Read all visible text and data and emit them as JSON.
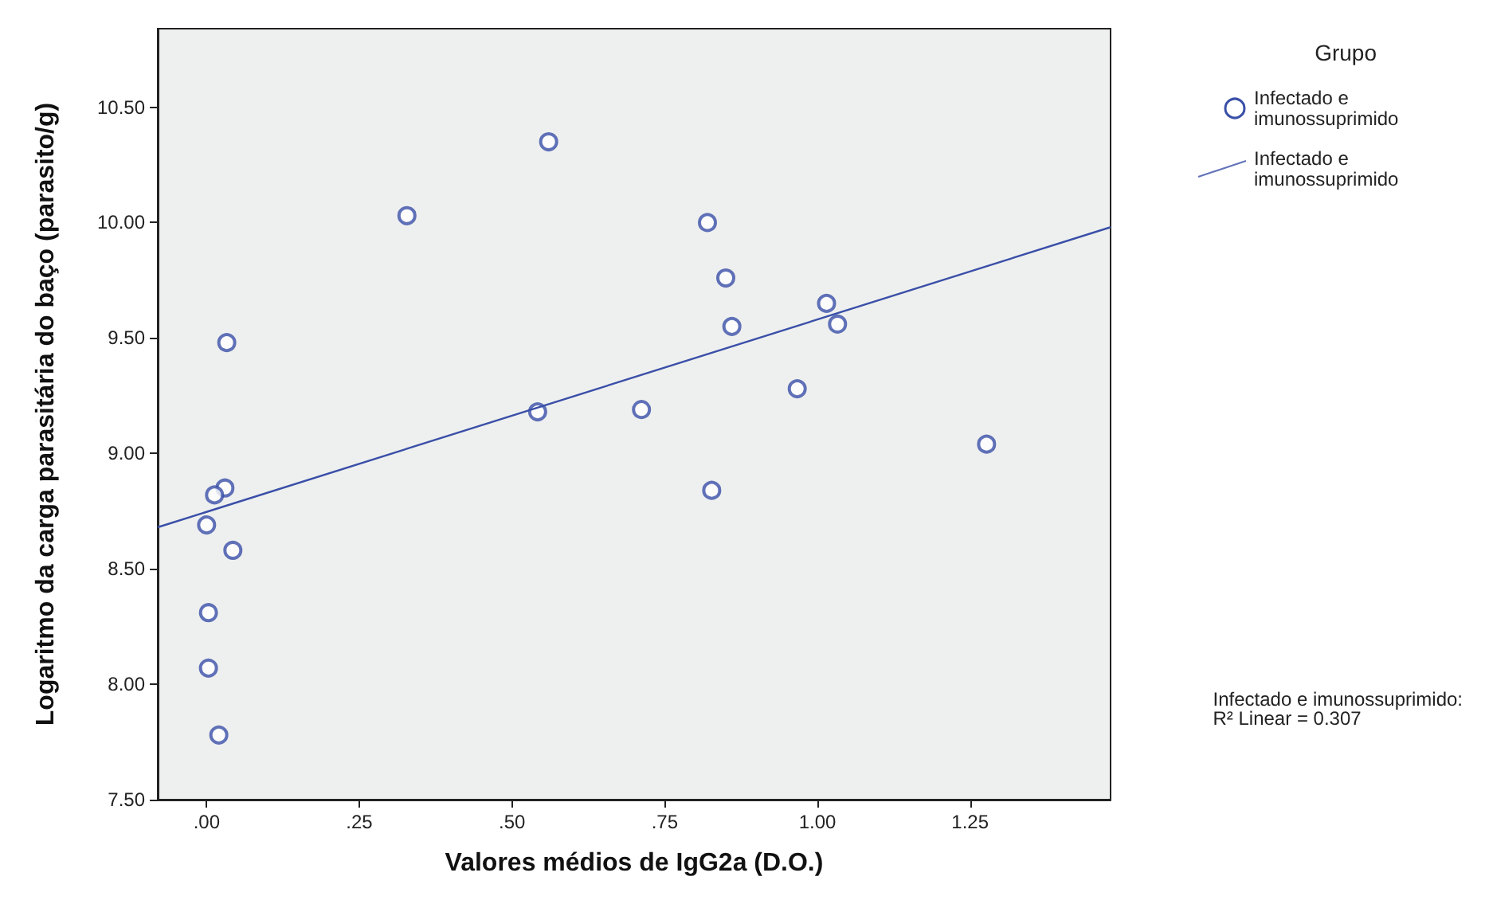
{
  "chart_data": {
    "type": "scatter",
    "xlabel": "Valores médios de IgG2a (D.O.)",
    "ylabel": "Logaritmo da carga parasitária do baço (parasito/g)",
    "legend_title": "Grupo",
    "legend": "top right",
    "grid": false,
    "marker": "circle",
    "xlim": [
      -0.08,
      1.48
    ],
    "xticks": [
      {
        "value": 0,
        "label": ".00"
      },
      {
        "value": 0.25,
        "label": ".25"
      },
      {
        "value": 0.5,
        "label": ".50"
      },
      {
        "value": 0.75,
        "label": ".75"
      },
      {
        "value": 1,
        "label": "1.00"
      },
      {
        "value": 1.25,
        "label": "1.25"
      }
    ],
    "ylim": [
      7.5,
      10.84
    ],
    "yticks": [
      {
        "value": 7.5,
        "label": "7.50"
      },
      {
        "value": 8,
        "label": "8.00"
      },
      {
        "value": 8.5,
        "label": "8.50"
      },
      {
        "value": 9,
        "label": "9.00"
      },
      {
        "value": 9.5,
        "label": "9.50"
      },
      {
        "value": 10,
        "label": "10.00"
      },
      {
        "value": 10.5,
        "label": "10.50"
      }
    ],
    "series": [
      {
        "name": "Infectado e imunossuprimido",
        "color": "#3a4fa8",
        "x": [
          0.033,
          0.328,
          0.56,
          0.82,
          0.85,
          0.86,
          1.015,
          1.033,
          0.967,
          0.542,
          0.712,
          0.827,
          1.277,
          0.03,
          0.013,
          0.0,
          0.043,
          0.003,
          0.003,
          0.02
        ],
        "values": [
          9.48,
          10.03,
          10.35,
          10.0,
          9.76,
          9.55,
          9.65,
          9.56,
          9.28,
          9.18,
          9.19,
          8.84,
          9.04,
          8.85,
          8.82,
          8.69,
          8.58,
          8.31,
          8.07,
          7.78
        ]
      },
      {
        "name": "Infectado e imunossuprimido",
        "type": "line",
        "marker": "none",
        "color": "#3a4fa8",
        "x": [
          -0.08,
          1.48
        ],
        "values": [
          8.68,
          9.98
        ]
      }
    ],
    "annotations": [
      "Infectado e imunossuprimido:\nR² Linear = 0.307"
    ]
  }
}
